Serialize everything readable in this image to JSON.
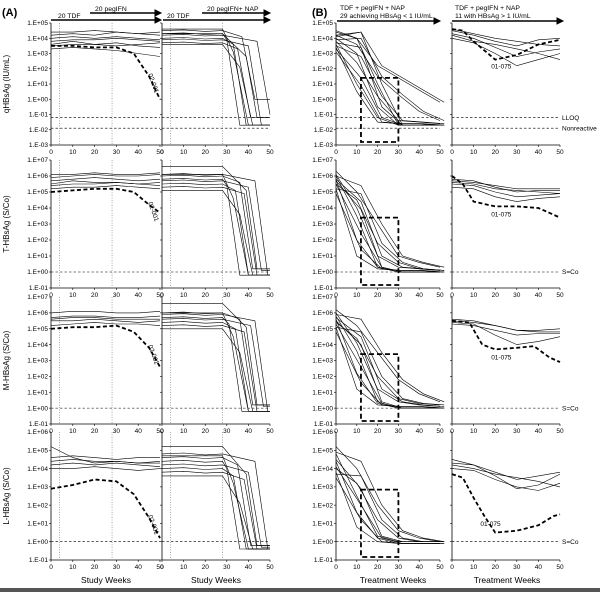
{
  "panel_labels": [
    "(A)",
    "(B)"
  ],
  "headers": {
    "a1_left": "20 TDF",
    "a1_right": "20 pegIFN",
    "a2_left": "20 TDF",
    "a2_right": "20 pegIFN+ NAP",
    "b1": [
      "TDF + pegIFN + NAP",
      "29 achieving HBsAg < 1 IU/mL"
    ],
    "b2": [
      "TDF + pegIFN + NAP",
      "11 with HBsAg > 1 IU/mL"
    ]
  },
  "x_labels": {
    "study": "Study Weeks",
    "treatment": "Treatment Weeks"
  },
  "annotations": {
    "a_highlight": "02-001",
    "b_highlight": "01-075",
    "lloq": "LLOQ",
    "nonreactive": "Nonreactive",
    "sco": "S=Co"
  },
  "chart_data": {
    "type": "line",
    "x_ticks": [
      "0",
      "10",
      "20",
      "30",
      "40",
      "50"
    ],
    "xlim": [
      0,
      50
    ],
    "rows": [
      {
        "ylabel": "qHBsAg (IU/mL)",
        "log_scale": true,
        "ylim_exp": [
          -3,
          5
        ],
        "y_ticks": [
          "1.E-03",
          "1.E-02",
          "1.E-01",
          "1.E+00",
          "1.E+01",
          "1.E+02",
          "1.E+03",
          "1.E+04",
          "1.E+05"
        ],
        "ref_lines": [
          {
            "value_exp": -1.2,
            "label": "LLOQ"
          },
          {
            "value_exp": -1.9,
            "label": "Nonreactive"
          }
        ]
      },
      {
        "ylabel": "T-HBsAg (S/Co)",
        "log_scale": true,
        "ylim_exp": [
          -1,
          7
        ],
        "y_ticks": [
          "1.E-01",
          "1.E+00",
          "1.E+01",
          "1.E+02",
          "1.E+03",
          "1.E+04",
          "1.E+05",
          "1.E+06",
          "1.E+07"
        ],
        "ref_lines": [
          {
            "value_exp": 0,
            "label": "S=Co"
          }
        ]
      },
      {
        "ylabel": "M-HBsAg (S/Co)",
        "log_scale": true,
        "ylim_exp": [
          -1,
          7
        ],
        "y_ticks": [
          "1.E-01",
          "1.E+00",
          "1.E+01",
          "1.E+02",
          "1.E+03",
          "1.E+04",
          "1.E+05",
          "1.E+06",
          "1.E+07"
        ],
        "ref_lines": [
          {
            "value_exp": 0,
            "label": "S=Co"
          }
        ]
      },
      {
        "ylabel": "L-HBsAg (S/Co)",
        "log_scale": true,
        "ylim_exp": [
          -1,
          6
        ],
        "y_ticks": [
          "1.E-01",
          "1.E+00",
          "1.E+01",
          "1.E+02",
          "1.E+03",
          "1.E+04",
          "1.E+05",
          "1.E+06"
        ],
        "ref_lines": [
          {
            "value_exp": 0,
            "label": "S=Co"
          }
        ]
      }
    ],
    "vlines_study_weeks": [
      4,
      28
    ],
    "highlight_box_weeks": [
      12,
      30
    ],
    "series_groups": {
      "A1_TDF_pegIFN": {
        "qHBsAg": {
          "bundle": [
            [
              4.2,
              4.3,
              4.2,
              4.4,
              4.3,
              4.2
            ],
            [
              3.8,
              3.9,
              3.9,
              4.0,
              3.9,
              3.8
            ],
            [
              3.5,
              3.6,
              3.6,
              3.7,
              3.5,
              3.4
            ],
            [
              3.3,
              3.4,
              3.3,
              3.2,
              3.0,
              2.8
            ],
            [
              4.0,
              4.1,
              4.0,
              4.1,
              4.0,
              3.9
            ],
            [
              3.6,
              3.8,
              3.6,
              3.5,
              3.6,
              3.7
            ],
            [
              4.4,
              4.4,
              4.5,
              4.4,
              4.3,
              4.4
            ]
          ],
          "highlight": [
            [
              0,
              3.5
            ],
            [
              10,
              3.5
            ],
            [
              20,
              3.4
            ],
            [
              30,
              3.4
            ],
            [
              38,
              3.0
            ],
            [
              45,
              1.5
            ],
            [
              50,
              0.0
            ]
          ]
        },
        "T": {
          "bundle": [
            [
              5.7,
              5.8,
              5.9,
              5.8,
              5.7,
              5.8
            ],
            [
              5.4,
              5.5,
              5.5,
              5.6,
              5.5,
              5.4
            ],
            [
              5.9,
              6.0,
              6.1,
              6.0,
              6.0,
              6.1
            ],
            [
              5.2,
              5.3,
              5.3,
              5.4,
              5.3,
              5.2
            ],
            [
              5.5,
              5.7,
              5.6,
              5.6,
              5.5,
              5.6
            ],
            [
              6.1,
              6.1,
              6.2,
              6.1,
              6.1,
              6.2
            ]
          ],
          "highlight": [
            [
              0,
              5.0
            ],
            [
              10,
              5.1
            ],
            [
              20,
              5.2
            ],
            [
              30,
              5.2
            ],
            [
              38,
              5.0
            ],
            [
              45,
              4.2
            ],
            [
              50,
              3.7
            ]
          ]
        },
        "M": {
          "bundle": [
            [
              5.7,
              5.8,
              5.8,
              5.7,
              5.7,
              5.8
            ],
            [
              5.5,
              5.5,
              5.6,
              5.5,
              5.4,
              5.5
            ],
            [
              6.0,
              6.1,
              6.1,
              6.0,
              6.0,
              6.1
            ],
            [
              5.2,
              5.3,
              5.4,
              5.3,
              5.3,
              5.2
            ],
            [
              5.6,
              5.7,
              5.7,
              5.6,
              5.6,
              5.6
            ]
          ],
          "highlight": [
            [
              0,
              5.0
            ],
            [
              10,
              5.1
            ],
            [
              20,
              5.1
            ],
            [
              30,
              5.2
            ],
            [
              38,
              4.8
            ],
            [
              45,
              3.8
            ],
            [
              50,
              2.6
            ]
          ]
        },
        "L": {
          "bundle": [
            [
              4.6,
              4.7,
              4.6,
              4.5,
              4.6,
              4.6
            ],
            [
              4.2,
              4.3,
              4.2,
              4.3,
              4.2,
              4.1
            ],
            [
              4.0,
              4.0,
              4.1,
              4.0,
              3.9,
              4.0
            ],
            [
              4.4,
              4.5,
              4.4,
              4.4,
              4.3,
              4.4
            ],
            [
              5.2,
              4.6,
              4.3,
              4.4,
              4.3,
              4.3
            ]
          ],
          "highlight": [
            [
              0,
              2.9
            ],
            [
              10,
              3.1
            ],
            [
              20,
              3.4
            ],
            [
              30,
              3.3
            ],
            [
              38,
              2.6
            ],
            [
              45,
              1.3
            ],
            [
              50,
              0.2
            ]
          ]
        }
      },
      "B1_responders": {
        "qHBsAg": [
          [
            4.4,
            4.0,
            1.0,
            -1.7,
            -1.7,
            -1.7
          ],
          [
            4.0,
            3.0,
            -0.5,
            -1.7,
            -1.7,
            -1.7
          ],
          [
            3.8,
            2.4,
            0.2,
            -1.4,
            -1.5,
            -1.6
          ],
          [
            4.2,
            3.6,
            1.5,
            0.3,
            -0.8,
            -1.4
          ],
          [
            3.6,
            1.0,
            -1.2,
            -1.7,
            -1.7,
            -1.7
          ],
          [
            4.5,
            4.0,
            2.2,
            1.4,
            0.6,
            -0.2
          ],
          [
            3.4,
            0.5,
            -1.5,
            -1.6,
            -1.6,
            -1.7
          ]
        ],
        "T": [
          [
            6.0,
            3.5,
            0.3,
            0.0,
            0.0,
            0.0
          ],
          [
            5.8,
            2.0,
            0.3,
            0.0,
            0.0,
            0.0
          ],
          [
            5.5,
            4.5,
            1.8,
            0.6,
            0.2,
            0.1
          ],
          [
            6.3,
            5.0,
            3.0,
            1.0,
            0.6,
            0.3
          ],
          [
            5.2,
            1.0,
            0.2,
            0.1,
            0.1,
            0.0
          ],
          [
            6.1,
            4.0,
            1.0,
            0.3,
            0.2,
            0.1
          ]
        ],
        "M": [
          [
            5.8,
            3.6,
            0.4,
            0.0,
            0.0,
            0.0
          ],
          [
            5.6,
            2.2,
            0.3,
            0.0,
            0.0,
            0.0
          ],
          [
            5.4,
            4.4,
            2.0,
            0.6,
            0.3,
            0.2
          ],
          [
            6.2,
            5.2,
            3.5,
            1.8,
            0.9,
            0.4
          ],
          [
            5.1,
            1.2,
            0.2,
            0.1,
            0.1,
            0.0
          ],
          [
            6.0,
            4.1,
            1.2,
            0.4,
            0.2,
            0.1
          ]
        ],
        "L": [
          [
            4.8,
            2.5,
            0.3,
            0.0,
            0.0,
            0.0
          ],
          [
            4.4,
            1.6,
            0.2,
            -0.1,
            -0.1,
            -0.1
          ],
          [
            4.0,
            3.2,
            1.2,
            0.2,
            0.0,
            0.0
          ],
          [
            5.2,
            4.0,
            2.0,
            0.6,
            0.2,
            0.0
          ],
          [
            3.8,
            0.8,
            0.0,
            -0.1,
            -0.1,
            -0.1
          ]
        ]
      },
      "B2_nonresponders": {
        "qHBsAg": {
          "bundle": [
            [
              4.6,
              4.3,
              4.0,
              3.8,
              3.6,
              3.5
            ],
            [
              4.3,
              4.0,
              3.4,
              2.8,
              3.1,
              3.3
            ],
            [
              4.0,
              3.7,
              3.0,
              2.2,
              2.6,
              3.0
            ],
            [
              4.5,
              4.2,
              3.8,
              3.5,
              3.9,
              4.0
            ],
            [
              4.2,
              3.8,
              3.6,
              3.3,
              3.0,
              2.6
            ]
          ],
          "highlight": [
            [
              0,
              4.6
            ],
            [
              5,
              4.5
            ],
            [
              10,
              3.8
            ],
            [
              20,
              2.6
            ],
            [
              30,
              2.9
            ],
            [
              40,
              3.6
            ],
            [
              50,
              3.9
            ]
          ]
        },
        "T": {
          "bundle": [
            [
              5.8,
              5.7,
              5.3,
              5.0,
              5.1,
              5.1
            ],
            [
              5.5,
              5.4,
              5.0,
              4.7,
              4.8,
              4.9
            ],
            [
              5.7,
              5.6,
              5.4,
              5.2,
              5.2,
              5.2
            ],
            [
              5.3,
              5.2,
              4.7,
              4.4,
              4.6,
              4.7
            ],
            [
              5.6,
              5.5,
              5.2,
              5.1,
              5.0,
              4.9
            ]
          ],
          "highlight": [
            [
              0,
              6.0
            ],
            [
              5,
              5.5
            ],
            [
              10,
              4.4
            ],
            [
              20,
              4.1
            ],
            [
              30,
              4.1
            ],
            [
              40,
              4.0
            ],
            [
              50,
              3.4
            ]
          ]
        },
        "M": {
          "bundle": [
            [
              5.5,
              5.4,
              5.2,
              4.9,
              4.9,
              5.0
            ],
            [
              5.3,
              5.2,
              4.9,
              4.6,
              4.7,
              4.7
            ],
            [
              5.6,
              5.5,
              5.2,
              4.9,
              4.8,
              4.8
            ],
            [
              5.4,
              5.3,
              4.6,
              4.0,
              4.2,
              4.5
            ]
          ],
          "highlight": [
            [
              0,
              5.5
            ],
            [
              8,
              5.4
            ],
            [
              14,
              4.0
            ],
            [
              20,
              3.7
            ],
            [
              30,
              3.8
            ],
            [
              38,
              3.9
            ],
            [
              45,
              3.2
            ],
            [
              50,
              2.9
            ]
          ]
        },
        "L": {
          "bundle": [
            [
              4.3,
              4.2,
              3.8,
              3.4,
              3.6,
              3.8
            ],
            [
              4.5,
              4.2,
              3.6,
              2.9,
              3.1,
              3.7
            ],
            [
              4.0,
              3.9,
              3.4,
              3.0,
              2.8,
              3.2
            ],
            [
              4.2,
              4.0,
              3.7,
              3.5,
              3.3,
              3.0
            ]
          ],
          "highlight": [
            [
              0,
              3.7
            ],
            [
              5,
              3.5
            ],
            [
              10,
              2.4
            ],
            [
              15,
              1.4
            ],
            [
              20,
              0.5
            ],
            [
              30,
              0.6
            ],
            [
              40,
              0.9
            ],
            [
              47,
              1.4
            ],
            [
              50,
              1.5
            ]
          ]
        }
      },
      "A2_TDF_pegIFN_NAP": {
        "qHBsAg": {
          "start": [
            4.3,
            4.0,
            3.7,
            4.5,
            3.9,
            4.2
          ],
          "drop_week": [
            30,
            33,
            35,
            37,
            40,
            44
          ],
          "end": [
            -1.7,
            -1.7,
            -1.2,
            0.0,
            -1.7,
            -1.0
          ]
        },
        "T": {
          "start": [
            5.8,
            5.5,
            6.0,
            5.3,
            5.7,
            6.1
          ],
          "drop_week": [
            30,
            34,
            36,
            38,
            40,
            43
          ],
          "end": [
            -0.2,
            -0.2,
            0.2,
            -0.2,
            0.1,
            -0.2
          ]
        },
        "M": {
          "start": [
            5.7,
            5.4,
            6.0,
            5.2,
            5.6,
            5.9
          ],
          "drop_week": [
            31,
            34,
            36,
            38,
            41,
            43
          ],
          "end": [
            -0.2,
            -0.2,
            0.2,
            -0.2,
            0.1,
            -0.2
          ]
        },
        "L": {
          "start": [
            4.4,
            4.0,
            4.6,
            3.8,
            4.2,
            4.8
          ],
          "drop_week": [
            30,
            33,
            35,
            38,
            40,
            43
          ],
          "end": [
            -0.4,
            -0.4,
            -0.2,
            -0.4,
            -0.3,
            -0.4
          ]
        }
      }
    }
  }
}
